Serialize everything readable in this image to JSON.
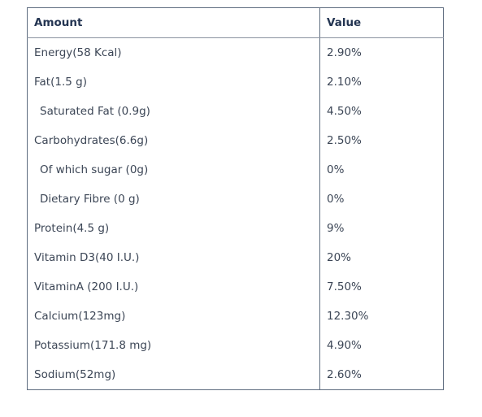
{
  "table": {
    "headers": {
      "amount": "Amount",
      "value": "Value"
    },
    "rows": [
      {
        "amount": "Energy(58 Kcal)",
        "value": "2.90%",
        "indent": false
      },
      {
        "amount": "Fat(1.5 g)",
        "value": "2.10%",
        "indent": false
      },
      {
        "amount": "Saturated Fat (0.9g)",
        "value": "4.50%",
        "indent": true
      },
      {
        "amount": "Carbohydrates(6.6g)",
        "value": "2.50%",
        "indent": false
      },
      {
        "amount": "Of which sugar (0g)",
        "value": "0%",
        "indent": true
      },
      {
        "amount": "Dietary Fibre (0 g)",
        "value": "0%",
        "indent": true
      },
      {
        "amount": "Protein(4.5 g)",
        "value": "9%",
        "indent": false
      },
      {
        "amount": "Vitamin D3(40 I.U.)",
        "value": "20%",
        "indent": false
      },
      {
        "amount": "VitaminA (200 I.U.)",
        "value": "7.50%",
        "indent": false
      },
      {
        "amount": "Calcium(123mg)",
        "value": "12.30%",
        "indent": false
      },
      {
        "amount": "Potassium(171.8 mg)",
        "value": "4.90%",
        "indent": false
      },
      {
        "amount": "Sodium(52mg)",
        "value": "2.60%",
        "indent": false
      }
    ]
  }
}
